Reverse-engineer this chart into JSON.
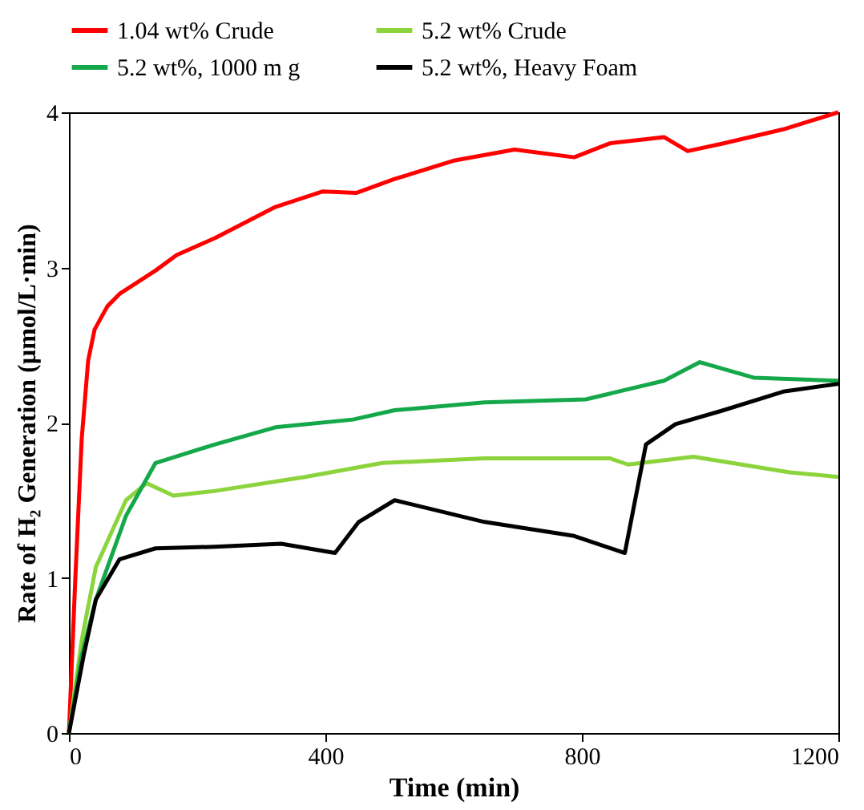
{
  "chart_data": {
    "type": "line",
    "xlabel": "Time (min)",
    "ylabel": "Rate of H₂ Generation (µmol/L·min)",
    "xlim": [
      0,
      1200
    ],
    "xticks": [
      0,
      400,
      800,
      1200
    ],
    "ylim": [
      0,
      4
    ],
    "yticks": [
      0,
      1,
      2,
      3,
      4
    ],
    "grid": false,
    "legend": "top",
    "marker": "none",
    "line_style": "solid",
    "series": [
      {
        "name": "1.04 wt% Crude",
        "color": "#ff0000",
        "x": [
          0,
          10,
          20,
          30,
          40,
          60,
          79,
          135,
          168,
          228,
          322,
          396,
          448,
          508,
          602,
          695,
          788,
          844,
          928,
          965,
          1021,
          1114,
          1200
        ],
        "values": [
          0,
          1.0,
          1.9,
          2.4,
          2.6,
          2.75,
          2.83,
          2.98,
          3.08,
          3.19,
          3.39,
          3.49,
          3.48,
          3.57,
          3.69,
          3.76,
          3.71,
          3.8,
          3.84,
          3.75,
          3.8,
          3.89,
          4.0
        ]
      },
      {
        "name": "5.2 wt% Crude",
        "color": "#8cd43c",
        "x": [
          0,
          20,
          42,
          89,
          121,
          163,
          228,
          368,
          489,
          648,
          844,
          872,
          974,
          1124,
          1200
        ],
        "values": [
          0,
          0.6,
          1.07,
          1.5,
          1.61,
          1.53,
          1.56,
          1.65,
          1.74,
          1.77,
          1.77,
          1.73,
          1.78,
          1.68,
          1.65
        ]
      },
      {
        "name": "5.2 wt%, 1000 m g",
        "color": "#14a84a",
        "x": [
          0,
          20,
          42,
          89,
          135,
          228,
          322,
          443,
          508,
          648,
          806,
          928,
          984,
          1068,
          1200
        ],
        "values": [
          0,
          0.5,
          0.86,
          1.4,
          1.74,
          1.86,
          1.97,
          2.02,
          2.08,
          2.13,
          2.15,
          2.27,
          2.39,
          2.29,
          2.27
        ]
      },
      {
        "name": "5.2 wt%, Heavy Foam",
        "color": "#000000",
        "x": [
          0,
          23,
          42,
          79,
          135,
          228,
          331,
          415,
          452,
          508,
          648,
          788,
          867,
          900,
          946,
          1021,
          1114,
          1200
        ],
        "values": [
          0,
          0.5,
          0.86,
          1.12,
          1.19,
          1.2,
          1.22,
          1.16,
          1.36,
          1.5,
          1.36,
          1.27,
          1.16,
          1.86,
          1.99,
          2.08,
          2.2,
          2.25
        ]
      }
    ]
  }
}
